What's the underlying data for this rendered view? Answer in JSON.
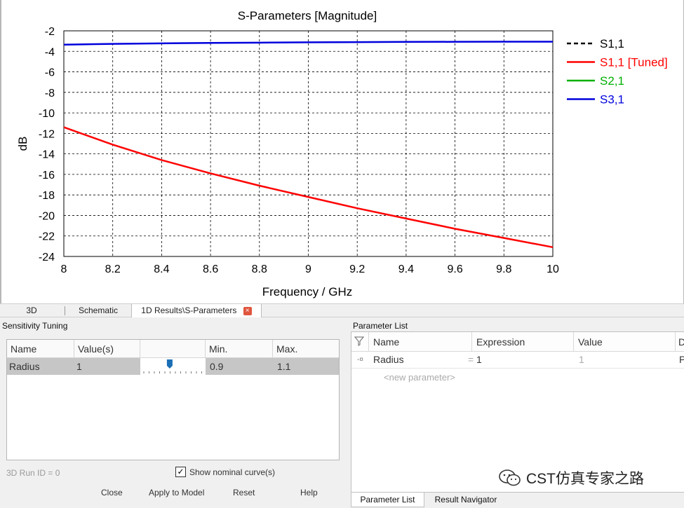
{
  "chart_data": {
    "type": "line",
    "title": "S-Parameters [Magnitude]",
    "xlabel": "Frequency / GHz",
    "ylabel": "dB",
    "xlim": [
      8,
      10
    ],
    "ylim": [
      -24,
      -2
    ],
    "grid": true,
    "legend_position": "right",
    "x_ticks": [
      "8",
      "8.2",
      "8.4",
      "8.6",
      "8.8",
      "9",
      "9.2",
      "9.4",
      "9.6",
      "9.8",
      "10"
    ],
    "y_ticks": [
      "-2",
      "-4",
      "-6",
      "-8",
      "-10",
      "-12",
      "-14",
      "-16",
      "-18",
      "-20",
      "-22",
      "-24"
    ],
    "series": [
      {
        "name": "S1,1",
        "color": "#000000",
        "dashed": true,
        "x": [],
        "y": []
      },
      {
        "name": "S1,1 [Tuned]",
        "color": "#ff0000",
        "dashed": false,
        "x": [
          8.0,
          8.2,
          8.4,
          8.6,
          8.8,
          9.0,
          9.2,
          9.4,
          9.6,
          9.8,
          10.0
        ],
        "y": [
          -11.4,
          -13.1,
          -14.6,
          -15.9,
          -17.1,
          -18.2,
          -19.3,
          -20.3,
          -21.3,
          -22.2,
          -23.1
        ]
      },
      {
        "name": "S2,1",
        "color": "#00b000",
        "dashed": false,
        "x": [],
        "y": []
      },
      {
        "name": "S3,1",
        "color": "#0000dd",
        "dashed": false,
        "x": [
          8.0,
          8.2,
          8.4,
          8.6,
          8.8,
          9.0,
          9.2,
          9.4,
          9.6,
          9.8,
          10.0
        ],
        "y": [
          -3.35,
          -3.27,
          -3.22,
          -3.18,
          -3.15,
          -3.12,
          -3.1,
          -3.08,
          -3.07,
          -3.06,
          -3.06
        ]
      }
    ]
  },
  "tabs": {
    "t3d": "3D",
    "schematic": "Schematic",
    "results": "1D Results\\S-Parameters",
    "close_glyph": "×"
  },
  "sensitivity": {
    "title": "Sensitivity Tuning",
    "columns": {
      "name": "Name",
      "values": "Value(s)",
      "min": "Min.",
      "max": "Max."
    },
    "row": {
      "name": "Radius",
      "value": "1",
      "min": "0.9",
      "max": "1.1",
      "slider_fraction": 0.45
    },
    "run_id": "3D Run ID = 0",
    "show_nominal_label": "Show nominal curve(s)",
    "show_nominal_checked": "✓",
    "buttons": {
      "close": "Close",
      "apply": "Apply to Model",
      "reset": "Reset",
      "help": "Help"
    }
  },
  "parameters": {
    "title": "Parameter List",
    "columns": {
      "name": "Name",
      "expression": "Expression",
      "value": "Value",
      "desc": "D"
    },
    "rows": [
      {
        "name": "Radius",
        "eq": "=",
        "expression": "1",
        "value": "1",
        "desc": "P"
      }
    ],
    "new_placeholder": "<new parameter>",
    "tabs": {
      "list": "Parameter List",
      "navigator": "Result Navigator"
    }
  },
  "watermark": {
    "text": "CST仿真专家之路"
  },
  "colors": {
    "accent_tab": "#e0553e",
    "slider_thumb": "#1a6fb5"
  }
}
